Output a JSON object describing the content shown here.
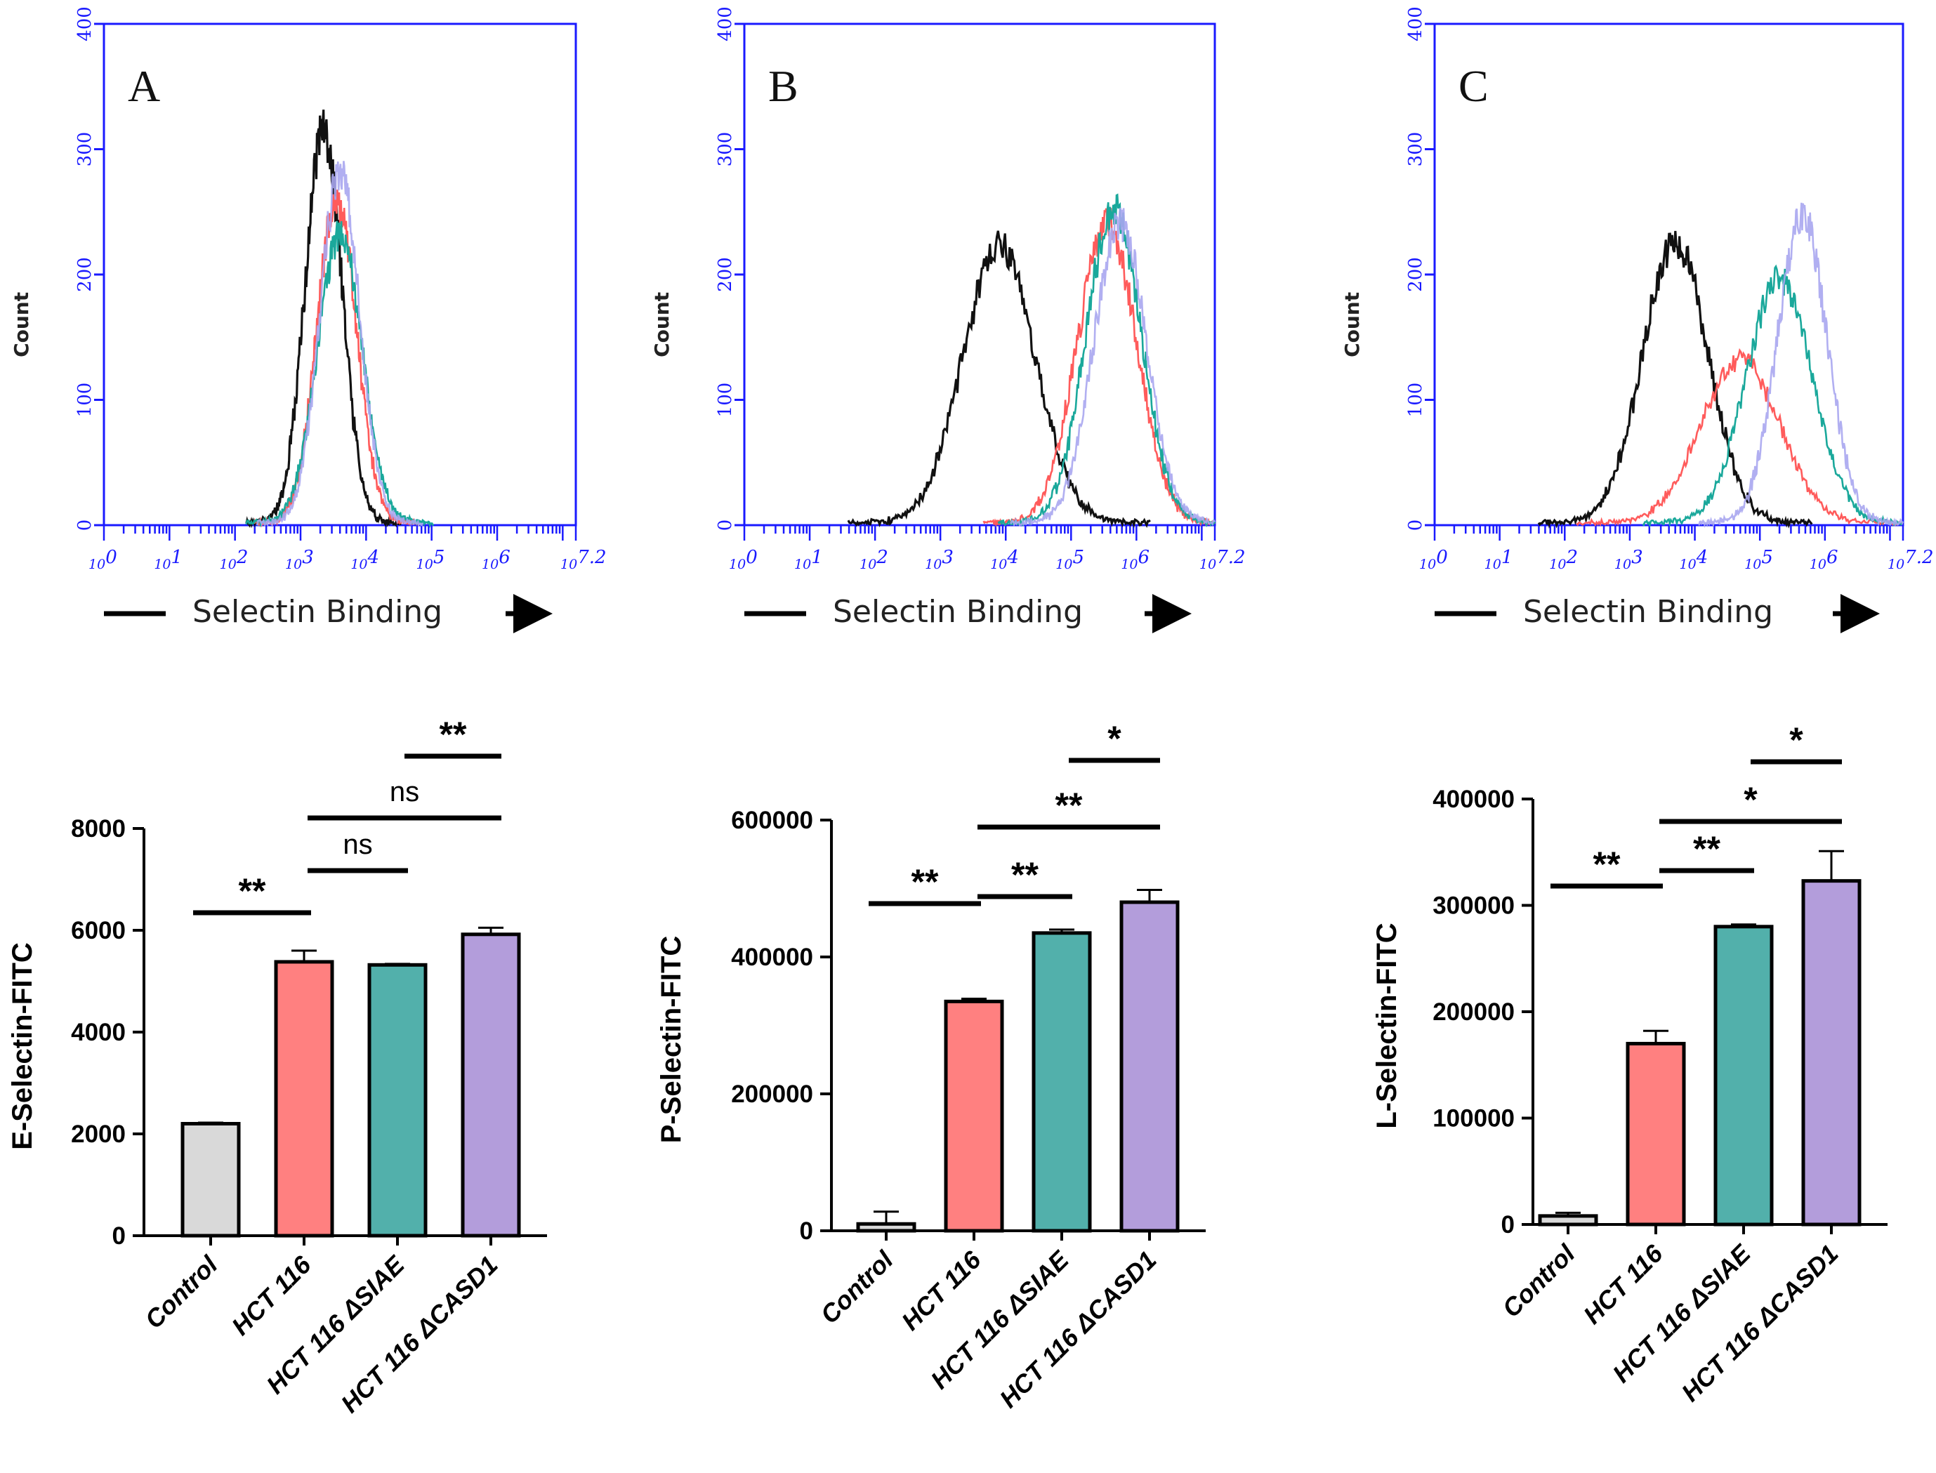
{
  "colors": {
    "control_hist": "#111111",
    "hct116_hist": "#ff5b5b",
    "siae_hist": "#1aa89b",
    "casd1_hist": "#a9a6f0",
    "blue_axis": "#1a1aff",
    "bar_control": "#d9d9d9",
    "bar_hct116": "#ff8080",
    "bar_siae": "#52b0ab",
    "bar_casd1": "#b39ddb"
  },
  "histograms": {
    "y_axis_label": "Count",
    "x_axis_label": "Selectin Binding",
    "y_ticks": [
      "0",
      "100",
      "200",
      "300",
      "400"
    ],
    "x_ticks": [
      "10",
      "10",
      "10",
      "10",
      "10",
      "10",
      "10"
    ],
    "x_tick_exponents": [
      "0",
      "1",
      "2",
      "3",
      "4",
      "5",
      "6"
    ],
    "x_tick_last": "10",
    "x_tick_last_exponent": "7.2",
    "panels": [
      {
        "letter": "A"
      },
      {
        "letter": "B"
      },
      {
        "letter": "C"
      }
    ]
  },
  "chart_data": [
    {
      "type": "line",
      "title": "A",
      "xlabel": "Selectin Binding",
      "ylabel": "Count",
      "xlim": [
        0,
        7.2
      ],
      "ylim": [
        0,
        400
      ],
      "series": [
        {
          "name": "Control",
          "peak_x": 3.35,
          "peak_y": 315,
          "spread": 0.28
        },
        {
          "name": "HCT 116",
          "peak_x": 3.55,
          "peak_y": 260,
          "spread": 0.3
        },
        {
          "name": "HCT 116 ΔSIAE",
          "peak_x": 3.6,
          "peak_y": 230,
          "spread": 0.34
        },
        {
          "name": "HCT 116 ΔCASD1",
          "peak_x": 3.6,
          "peak_y": 280,
          "spread": 0.3
        }
      ]
    },
    {
      "type": "line",
      "title": "B",
      "xlabel": "Selectin Binding",
      "ylabel": "Count",
      "xlim": [
        0,
        7.2
      ],
      "ylim": [
        0,
        400
      ],
      "series": [
        {
          "name": "Control",
          "peak_x": 3.9,
          "peak_y": 220,
          "spread": 0.55
        },
        {
          "name": "HCT 116",
          "peak_x": 5.55,
          "peak_y": 240,
          "spread": 0.45
        },
        {
          "name": "HCT 116 ΔSIAE",
          "peak_x": 5.65,
          "peak_y": 250,
          "spread": 0.42
        },
        {
          "name": "HCT 116 ΔCASD1",
          "peak_x": 5.75,
          "peak_y": 240,
          "spread": 0.4
        }
      ]
    },
    {
      "type": "line",
      "title": "C",
      "xlabel": "Selectin Binding",
      "ylabel": "Count",
      "xlim": [
        0,
        7.2
      ],
      "ylim": [
        0,
        400
      ],
      "series": [
        {
          "name": "Control",
          "peak_x": 3.7,
          "peak_y": 225,
          "spread": 0.5
        },
        {
          "name": "HCT 116",
          "peak_x": 4.7,
          "peak_y": 130,
          "spread": 0.6
        },
        {
          "name": "HCT 116 ΔSIAE",
          "peak_x": 5.3,
          "peak_y": 195,
          "spread": 0.5
        },
        {
          "name": "HCT 116 ΔCASD1",
          "peak_x": 5.65,
          "peak_y": 245,
          "spread": 0.38
        }
      ]
    },
    {
      "type": "bar",
      "title": "",
      "xlabel": "",
      "ylabel": "E-Selectin-FITC",
      "categories": [
        "Control",
        "HCT 116",
        "HCT 116 ΔSIAE",
        "HCT 116 ΔCASD1"
      ],
      "values": [
        2200,
        5380,
        5320,
        5920
      ],
      "errors": [
        20,
        220,
        20,
        130
      ],
      "ylim": [
        0,
        8000
      ],
      "yticks": [
        "0",
        "2000",
        "4000",
        "6000",
        "8000"
      ],
      "significance": [
        {
          "from": 0,
          "to": 1,
          "label": "**"
        },
        {
          "from": 1,
          "to": 2,
          "label": "ns"
        },
        {
          "from": 1,
          "to": 3,
          "label": "ns"
        },
        {
          "from": 2,
          "to": 3,
          "label": "**"
        }
      ]
    },
    {
      "type": "bar",
      "title": "",
      "xlabel": "",
      "ylabel": "P-Selectin-FITC",
      "categories": [
        "Control",
        "HCT 116",
        "HCT 116 ΔSIAE",
        "HCT 116 ΔCASD1"
      ],
      "values": [
        10000,
        335000,
        435000,
        480000
      ],
      "errors": [
        18000,
        4000,
        5000,
        18000
      ],
      "ylim": [
        0,
        600000
      ],
      "yticks": [
        "0",
        "200000",
        "400000",
        "600000"
      ],
      "significance": [
        {
          "from": 0,
          "to": 1,
          "label": "**"
        },
        {
          "from": 1,
          "to": 2,
          "label": "**"
        },
        {
          "from": 1,
          "to": 3,
          "label": "**"
        },
        {
          "from": 2,
          "to": 3,
          "label": "*"
        }
      ]
    },
    {
      "type": "bar",
      "title": "",
      "xlabel": "",
      "ylabel": "L-Selectin-FITC",
      "categories": [
        "Control",
        "HCT 116",
        "HCT 116 ΔSIAE",
        "HCT 116 ΔCASD1"
      ],
      "values": [
        8000,
        170000,
        280000,
        323000
      ],
      "errors": [
        3000,
        12000,
        2000,
        28000
      ],
      "ylim": [
        0,
        400000
      ],
      "yticks": [
        "0",
        "100000",
        "200000",
        "300000",
        "400000"
      ],
      "significance": [
        {
          "from": 0,
          "to": 1,
          "label": "**"
        },
        {
          "from": 1,
          "to": 2,
          "label": "**"
        },
        {
          "from": 1,
          "to": 3,
          "label": "*"
        },
        {
          "from": 2,
          "to": 3,
          "label": "*"
        }
      ]
    }
  ]
}
